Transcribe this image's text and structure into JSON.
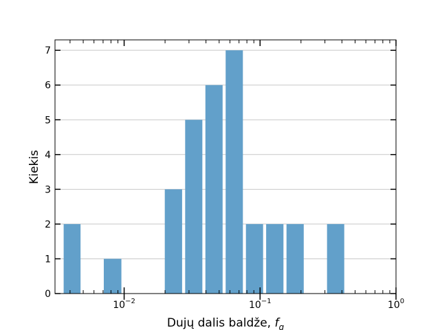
{
  "chart_data": {
    "type": "bar",
    "title": "",
    "xlabel": "Dujų dalis baldže, ",
    "xlabel_symbol": "f",
    "xlabel_subscript": "g",
    "ylabel": "Kiekis",
    "x_scale": "log",
    "xlim": [
      0.0031,
      1.0
    ],
    "ylim": [
      0,
      7.3
    ],
    "grid": "horizontal",
    "bar_color": "#62a0ca",
    "x_ticks": [
      {
        "base": "10",
        "exp": "−2",
        "value": 0.01
      },
      {
        "base": "10",
        "exp": "−1",
        "value": 0.1
      },
      {
        "base": "10",
        "exp": "0",
        "value": 1.0
      }
    ],
    "y_ticks": [
      "0",
      "1",
      "2",
      "3",
      "4",
      "5",
      "6",
      "7"
    ],
    "bins": [
      {
        "x0": 0.0035,
        "x1": 0.0049,
        "value": 2
      },
      {
        "x0": 0.0049,
        "x1": 0.0069,
        "value": 0
      },
      {
        "x0": 0.0069,
        "x1": 0.0098,
        "value": 1
      },
      {
        "x0": 0.0098,
        "x1": 0.0138,
        "value": 0
      },
      {
        "x0": 0.0138,
        "x1": 0.0194,
        "value": 0
      },
      {
        "x0": 0.0194,
        "x1": 0.0274,
        "value": 3
      },
      {
        "x0": 0.0274,
        "x1": 0.0386,
        "value": 5
      },
      {
        "x0": 0.0386,
        "x1": 0.0544,
        "value": 6
      },
      {
        "x0": 0.0544,
        "x1": 0.0767,
        "value": 7
      },
      {
        "x0": 0.0767,
        "x1": 0.108,
        "value": 2
      },
      {
        "x0": 0.108,
        "x1": 0.1525,
        "value": 2
      },
      {
        "x0": 0.1525,
        "x1": 0.215,
        "value": 2
      },
      {
        "x0": 0.215,
        "x1": 0.303,
        "value": 0
      },
      {
        "x0": 0.303,
        "x1": 0.427,
        "value": 2
      },
      {
        "x0": 0.427,
        "x1": 0.602,
        "value": 0
      }
    ]
  }
}
